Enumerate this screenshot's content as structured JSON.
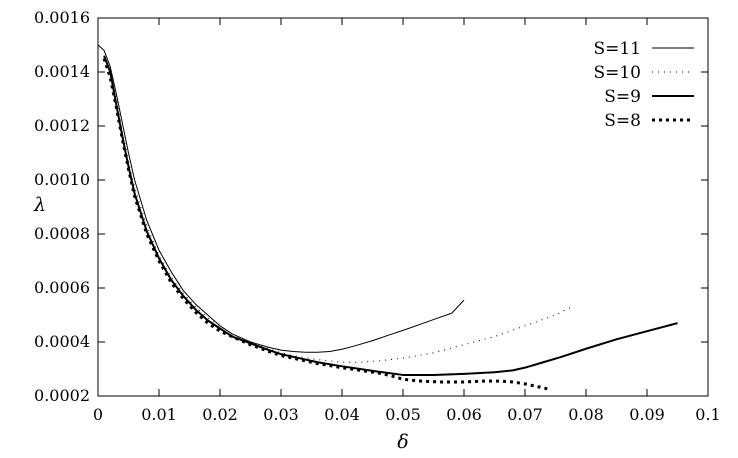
{
  "chart_data": {
    "type": "line",
    "title": "",
    "xlabel": "δ",
    "ylabel": "λ",
    "xlim": [
      0,
      0.1
    ],
    "ylim": [
      0.0002,
      0.0016
    ],
    "grid": false,
    "legend_position": "top-right",
    "x_ticks": [
      0,
      0.01,
      0.02,
      0.03,
      0.04,
      0.05,
      0.06,
      0.07,
      0.08,
      0.09,
      0.1
    ],
    "x_tick_labels": [
      "0",
      "0.01",
      "0.02",
      "0.03",
      "0.04",
      "0.05",
      "0.06",
      "0.07",
      "0.08",
      "0.09",
      "0.1"
    ],
    "y_ticks": [
      0.0002,
      0.0004,
      0.0006,
      0.0008,
      0.001,
      0.0012,
      0.0014,
      0.0016
    ],
    "y_tick_labels": [
      "0.0002",
      "0.0004",
      "0.0006",
      "0.0008",
      "0.0010",
      "0.0012",
      "0.0014",
      "0.0016"
    ],
    "series": [
      {
        "name": "S=11",
        "style": "thin-solid",
        "color": "#000000",
        "x": [
          0,
          0.001,
          0.002,
          0.003,
          0.004,
          0.005,
          0.006,
          0.008,
          0.01,
          0.012,
          0.014,
          0.016,
          0.018,
          0.02,
          0.022,
          0.025,
          0.028,
          0.03,
          0.032,
          0.034,
          0.036,
          0.038,
          0.04,
          0.042,
          0.045,
          0.048,
          0.05,
          0.053,
          0.055,
          0.058,
          0.06
        ],
        "y": [
          0.0015,
          0.00148,
          0.00142,
          0.00132,
          0.00121,
          0.0011,
          0.001,
          0.00085,
          0.00074,
          0.00066,
          0.00059,
          0.00054,
          0.0005,
          0.00046,
          0.00043,
          0.0004,
          0.00038,
          0.00037,
          0.000365,
          0.000362,
          0.000362,
          0.000365,
          0.000373,
          0.000385,
          0.000405,
          0.000428,
          0.000443,
          0.000467,
          0.000483,
          0.000507,
          0.000555
        ]
      },
      {
        "name": "S=10",
        "style": "dotted",
        "color": "#000000",
        "x": [
          0.001,
          0.002,
          0.003,
          0.004,
          0.005,
          0.006,
          0.008,
          0.01,
          0.012,
          0.014,
          0.016,
          0.018,
          0.02,
          0.022,
          0.025,
          0.028,
          0.03,
          0.033,
          0.036,
          0.04,
          0.043,
          0.046,
          0.05,
          0.055,
          0.06,
          0.065,
          0.07,
          0.075,
          0.078
        ],
        "y": [
          0.00146,
          0.0014,
          0.0013,
          0.00118,
          0.00107,
          0.00097,
          0.00083,
          0.00072,
          0.00064,
          0.00058,
          0.00053,
          0.00049,
          0.00046,
          0.00043,
          0.0004,
          0.000375,
          0.00036,
          0.000345,
          0.000335,
          0.000325,
          0.000325,
          0.00033,
          0.00034,
          0.00036,
          0.00039,
          0.00042,
          0.00046,
          0.0005,
          0.000535
        ]
      },
      {
        "name": "S=9",
        "style": "thick-solid",
        "color": "#000000",
        "x": [
          0.001,
          0.002,
          0.003,
          0.004,
          0.005,
          0.006,
          0.008,
          0.01,
          0.012,
          0.014,
          0.016,
          0.018,
          0.02,
          0.022,
          0.025,
          0.028,
          0.03,
          0.033,
          0.036,
          0.04,
          0.043,
          0.046,
          0.05,
          0.055,
          0.06,
          0.065,
          0.068,
          0.07,
          0.073,
          0.076,
          0.08,
          0.085,
          0.09,
          0.095
        ],
        "y": [
          0.00146,
          0.0014,
          0.00128,
          0.00116,
          0.00105,
          0.00095,
          0.00081,
          0.00071,
          0.00063,
          0.00057,
          0.00052,
          0.00048,
          0.00045,
          0.00042,
          0.000395,
          0.00037,
          0.000355,
          0.00034,
          0.000325,
          0.00031,
          0.0003,
          0.00029,
          0.000278,
          0.000278,
          0.000282,
          0.000288,
          0.000295,
          0.000305,
          0.000325,
          0.000345,
          0.000375,
          0.00041,
          0.00044,
          0.00047
        ]
      },
      {
        "name": "S=8",
        "style": "thick-dotted",
        "color": "#000000",
        "x": [
          0.001,
          0.002,
          0.003,
          0.004,
          0.005,
          0.006,
          0.008,
          0.01,
          0.012,
          0.014,
          0.016,
          0.018,
          0.02,
          0.022,
          0.025,
          0.028,
          0.03,
          0.033,
          0.036,
          0.04,
          0.043,
          0.046,
          0.048,
          0.05,
          0.053,
          0.056,
          0.06,
          0.063,
          0.066,
          0.068,
          0.07,
          0.072,
          0.074
        ],
        "y": [
          0.00145,
          0.00138,
          0.00127,
          0.00115,
          0.00104,
          0.00094,
          0.0008,
          0.0007,
          0.00062,
          0.00056,
          0.00051,
          0.00047,
          0.00044,
          0.00042,
          0.00039,
          0.000365,
          0.00035,
          0.000335,
          0.00032,
          0.000305,
          0.000295,
          0.000285,
          0.000275,
          0.000262,
          0.000255,
          0.000252,
          0.000252,
          0.000255,
          0.000255,
          0.000252,
          0.000245,
          0.000235,
          0.000225
        ]
      }
    ]
  }
}
